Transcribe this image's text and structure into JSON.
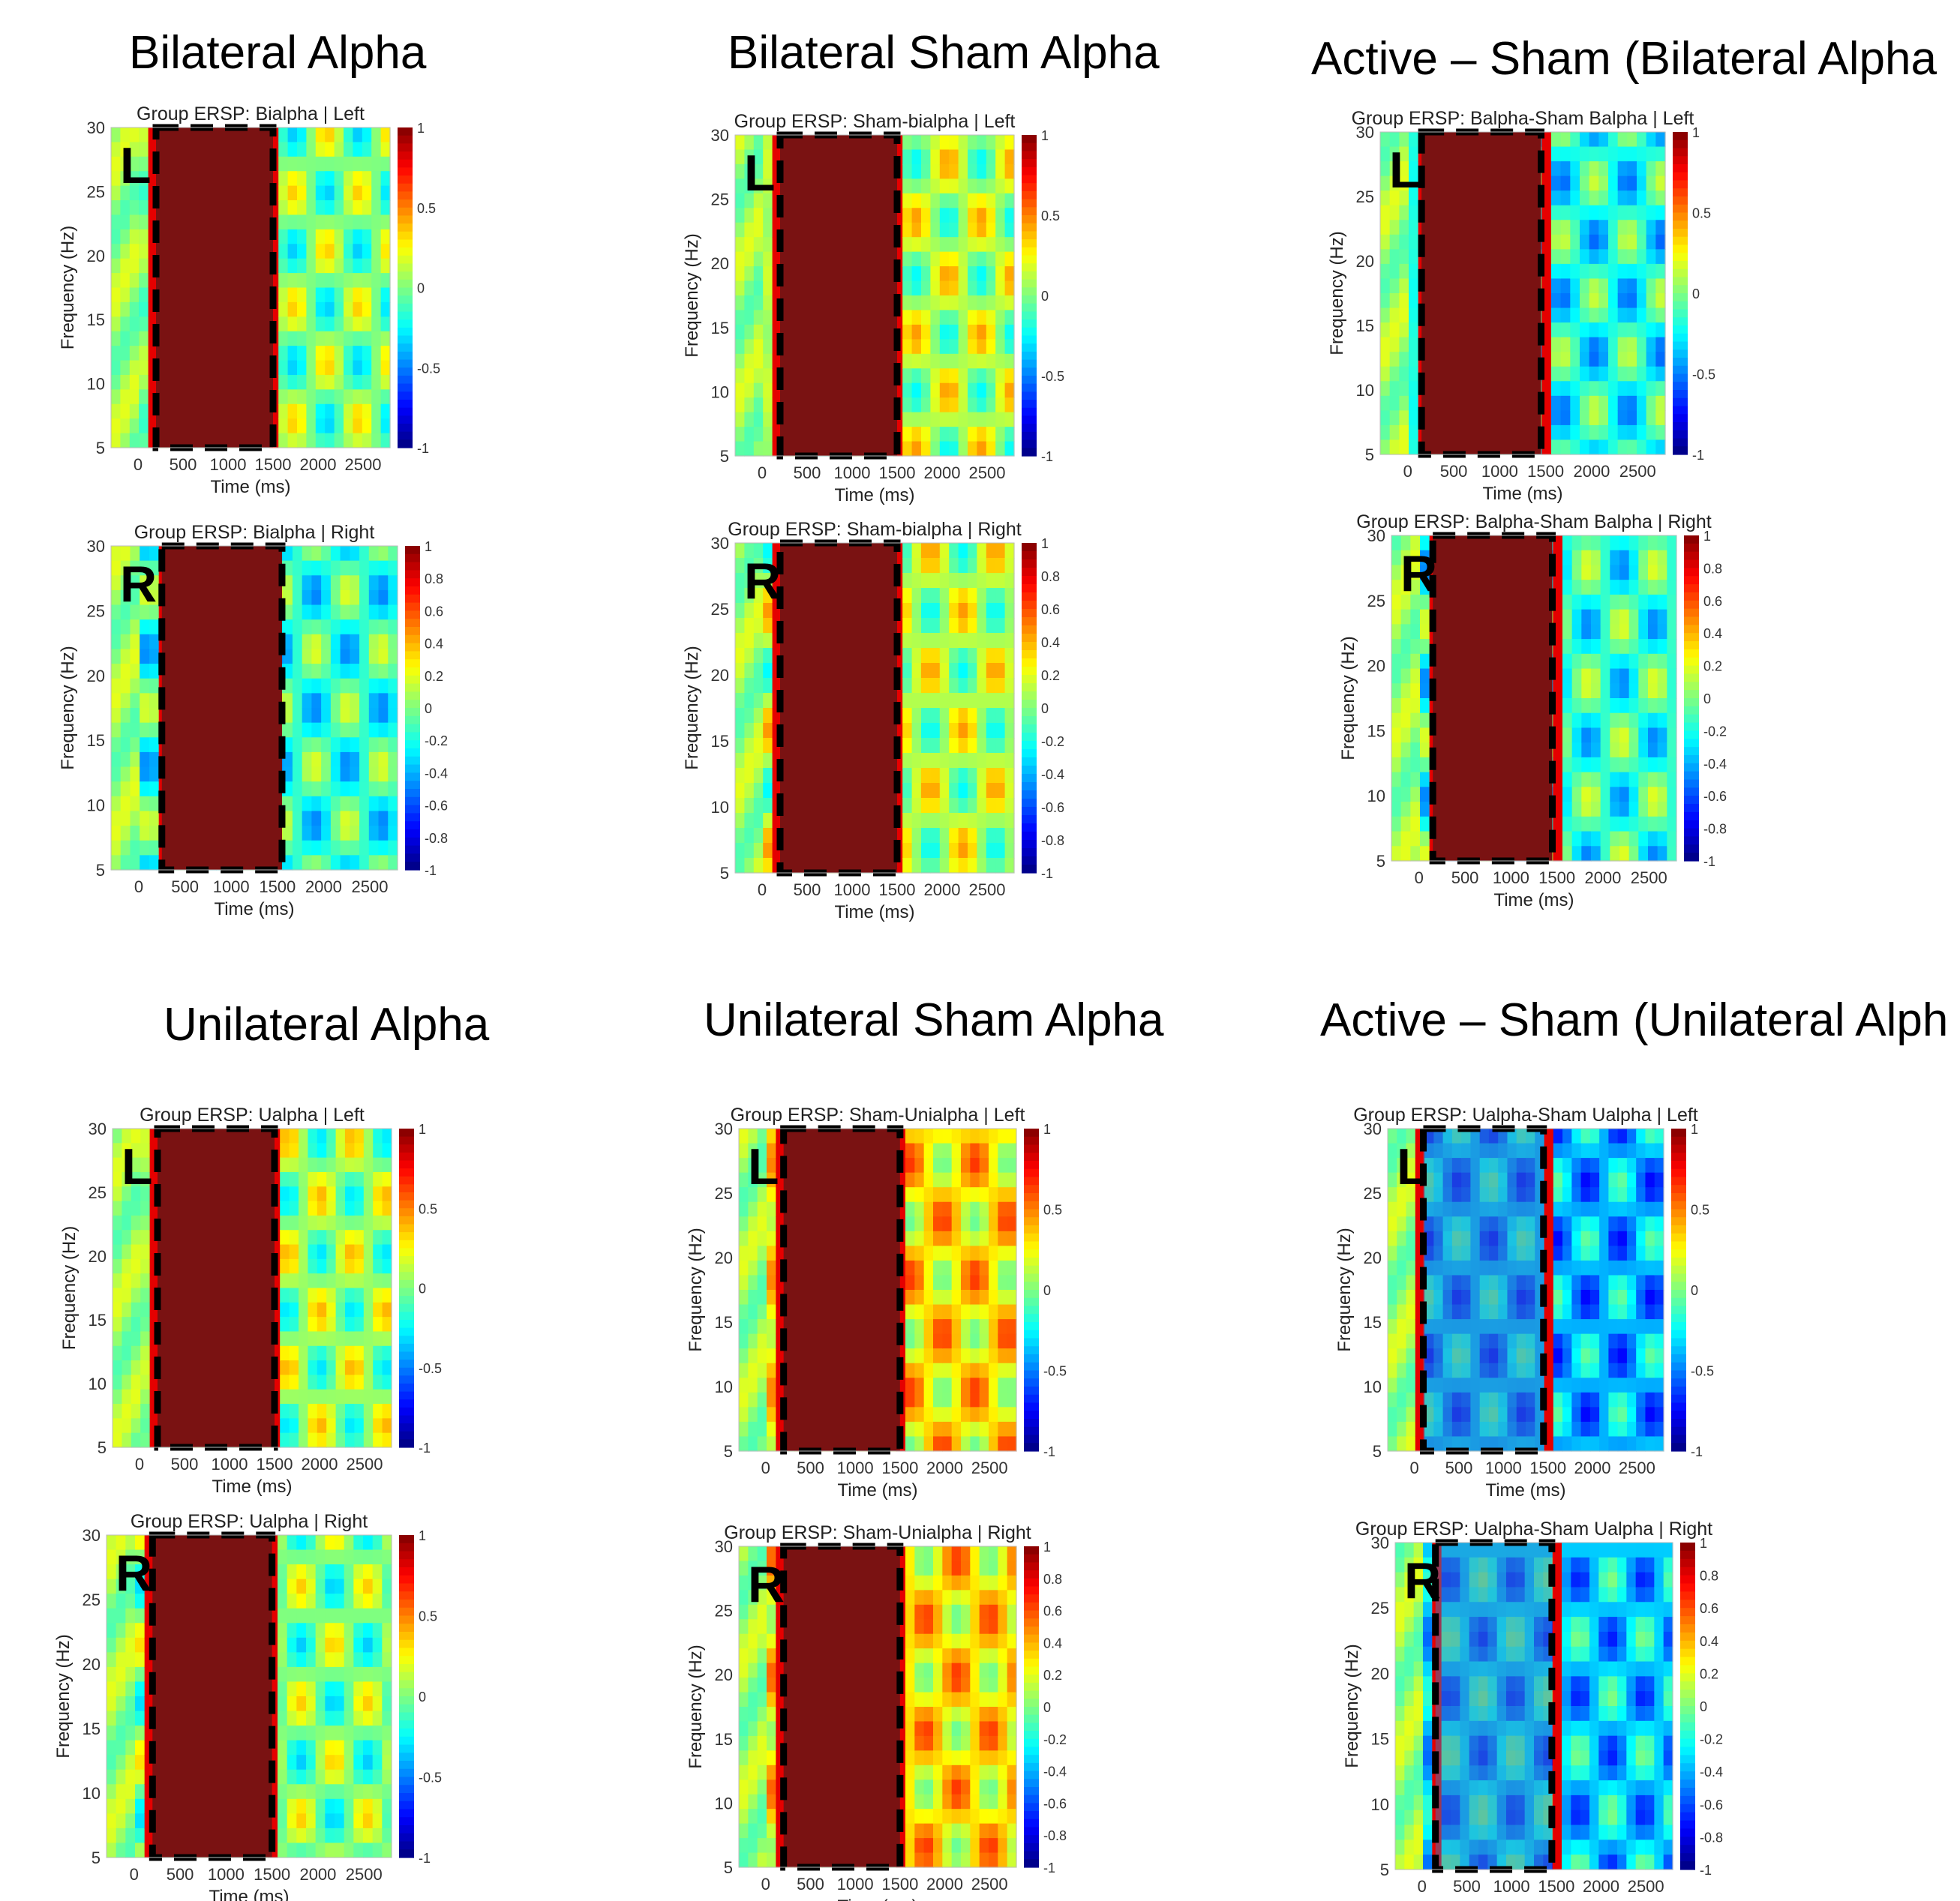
{
  "section_titles": {
    "bilateral_alpha": "Bilateral Alpha",
    "bilateral_sham_alpha": "Bilateral Sham Alpha",
    "active_sham_bilateral": "Active – Sham (Bilateral Alpha",
    "unilateral_alpha": "Unilateral Alpha",
    "unilateral_sham_alpha": "Unilateral Sham Alpha",
    "active_sham_unilateral": "Active – Sham (Unilateral Alph"
  },
  "colors": {
    "saturated": "#7a1212",
    "dashed_box": "#000000",
    "colormap": "jet"
  },
  "chart_data": [
    {
      "type": "heatmap",
      "title": "Group ERSP: Bialpha | Left",
      "side_label": "L",
      "xlabel": "Time (ms)",
      "ylabel": "Frequency (Hz)",
      "xlim": [
        -300,
        2800
      ],
      "ylim": [
        5,
        30
      ],
      "xticks": [
        0,
        500,
        1000,
        1500,
        2000,
        2500
      ],
      "yticks": [
        5,
        10,
        15,
        20,
        25,
        30
      ],
      "clim": [
        -1,
        1
      ],
      "colorbar_ticks": [
        -1,
        -0.5,
        0,
        0.5,
        1
      ],
      "stim_window_ms": [
        200,
        1500
      ],
      "masked": true,
      "mask_overlay": false,
      "post_mean": 0.0
    },
    {
      "type": "heatmap",
      "title": "Group ERSP: Bialpha | Right",
      "side_label": "R",
      "xlabel": "Time (ms)",
      "ylabel": "Frequency (Hz)",
      "xlim": [
        -300,
        2800
      ],
      "ylim": [
        5,
        30
      ],
      "xticks": [
        0,
        500,
        1000,
        1500,
        2000,
        2500
      ],
      "yticks": [
        5,
        10,
        15,
        20,
        25,
        30
      ],
      "clim": [
        -1,
        1
      ],
      "colorbar_ticks": [
        -1,
        -0.8,
        -0.6,
        -0.4,
        -0.2,
        0,
        0.2,
        0.4,
        0.6,
        0.8,
        1
      ],
      "stim_window_ms": [
        250,
        1550
      ],
      "masked": true,
      "mask_overlay": false,
      "post_mean": -0.15
    },
    {
      "type": "heatmap",
      "title": "Group ERSP: Sham-bialpha | Left",
      "side_label": "L",
      "xlabel": "Time (ms)",
      "ylabel": "Frequency (Hz)",
      "xlim": [
        -300,
        2800
      ],
      "ylim": [
        5,
        30
      ],
      "xticks": [
        0,
        500,
        1000,
        1500,
        2000,
        2500
      ],
      "yticks": [
        5,
        10,
        15,
        20,
        25,
        30
      ],
      "clim": [
        -1,
        1
      ],
      "colorbar_ticks": [
        -1,
        -0.5,
        0,
        0.5,
        1
      ],
      "stim_window_ms": [
        200,
        1500
      ],
      "masked": true,
      "mask_overlay": false,
      "post_mean": 0.1
    },
    {
      "type": "heatmap",
      "title": "Group ERSP: Sham-bialpha | Right",
      "side_label": "R",
      "xlabel": "Time (ms)",
      "ylabel": "Frequency (Hz)",
      "xlim": [
        -300,
        2800
      ],
      "ylim": [
        5,
        30
      ],
      "xticks": [
        0,
        500,
        1000,
        1500,
        2000,
        2500
      ],
      "yticks": [
        5,
        10,
        15,
        20,
        25,
        30
      ],
      "clim": [
        -1,
        1
      ],
      "colorbar_ticks": [
        -1,
        -0.8,
        -0.6,
        -0.4,
        -0.2,
        0,
        0.2,
        0.4,
        0.6,
        0.8,
        1
      ],
      "stim_window_ms": [
        200,
        1500
      ],
      "masked": true,
      "mask_overlay": false,
      "post_mean": 0.1
    },
    {
      "type": "heatmap",
      "title": "Group ERSP: Balpha-Sham Balpha | Left",
      "side_label": "L",
      "xlabel": "Time (ms)",
      "ylabel": "Frequency (Hz)",
      "xlim": [
        -300,
        2800
      ],
      "ylim": [
        5,
        30
      ],
      "xticks": [
        0,
        500,
        1000,
        1500,
        2000,
        2500
      ],
      "yticks": [
        5,
        10,
        15,
        20,
        25,
        30
      ],
      "clim": [
        -1,
        1
      ],
      "colorbar_ticks": [
        -1,
        -0.5,
        0,
        0.5,
        1
      ],
      "stim_window_ms": [
        150,
        1450
      ],
      "masked": true,
      "mask_overlay": false,
      "post_mean": -0.2
    },
    {
      "type": "heatmap",
      "title": "Group ERSP: Balpha-Sham Balpha | Right",
      "side_label": "R",
      "xlabel": "Time (ms)",
      "ylabel": "Frequency (Hz)",
      "xlim": [
        -300,
        2800
      ],
      "ylim": [
        5,
        30
      ],
      "xticks": [
        0,
        500,
        1000,
        1500,
        2000,
        2500
      ],
      "yticks": [
        5,
        10,
        15,
        20,
        25,
        30
      ],
      "clim": [
        -1,
        1
      ],
      "colorbar_ticks": [
        -1,
        -0.8,
        -0.6,
        -0.4,
        -0.2,
        0,
        0.2,
        0.4,
        0.6,
        0.8,
        1
      ],
      "stim_window_ms": [
        150,
        1450
      ],
      "masked": true,
      "mask_overlay": false,
      "post_mean": -0.15
    },
    {
      "type": "heatmap",
      "title": "Group ERSP: Ualpha | Left",
      "side_label": "L",
      "xlabel": "Time (ms)",
      "ylabel": "Frequency (Hz)",
      "xlim": [
        -300,
        2800
      ],
      "ylim": [
        5,
        30
      ],
      "xticks": [
        0,
        500,
        1000,
        1500,
        2000,
        2500
      ],
      "yticks": [
        5,
        10,
        15,
        20,
        25,
        30
      ],
      "clim": [
        -1,
        1
      ],
      "colorbar_ticks": [
        -1,
        -0.5,
        0,
        0.5,
        1
      ],
      "stim_window_ms": [
        200,
        1500
      ],
      "masked": true,
      "mask_overlay": false,
      "post_mean": 0.05
    },
    {
      "type": "heatmap",
      "title": "Group ERSP: Ualpha | Right",
      "side_label": "R",
      "xlabel": "Time (ms)",
      "ylabel": "Frequency (Hz)",
      "xlim": [
        -300,
        2800
      ],
      "ylim": [
        5,
        30
      ],
      "xticks": [
        0,
        500,
        1000,
        1500,
        2000,
        2500
      ],
      "yticks": [
        5,
        10,
        15,
        20,
        25,
        30
      ],
      "clim": [
        -1,
        1
      ],
      "colorbar_ticks": [
        -1,
        -0.5,
        0,
        0.5,
        1
      ],
      "stim_window_ms": [
        200,
        1500
      ],
      "masked": true,
      "mask_overlay": false,
      "post_mean": 0.0
    },
    {
      "type": "heatmap",
      "title": "Group ERSP: Sham-Unialpha | Left",
      "side_label": "L",
      "xlabel": "Time (ms)",
      "ylabel": "Frequency (Hz)",
      "xlim": [
        -300,
        2800
      ],
      "ylim": [
        5,
        30
      ],
      "xticks": [
        0,
        500,
        1000,
        1500,
        2000,
        2500
      ],
      "yticks": [
        5,
        10,
        15,
        20,
        25,
        30
      ],
      "clim": [
        -1,
        1
      ],
      "colorbar_ticks": [
        -1,
        -0.5,
        0,
        0.5,
        1
      ],
      "stim_window_ms": [
        200,
        1500
      ],
      "masked": true,
      "mask_overlay": false,
      "post_mean": 0.3
    },
    {
      "type": "heatmap",
      "title": "Group ERSP: Sham-Unialpha | Right",
      "side_label": "R",
      "xlabel": "Time (ms)",
      "ylabel": "Frequency (Hz)",
      "xlim": [
        -300,
        2800
      ],
      "ylim": [
        5,
        30
      ],
      "xticks": [
        0,
        500,
        1000,
        1500,
        2000,
        2500
      ],
      "yticks": [
        5,
        10,
        15,
        20,
        25,
        30
      ],
      "clim": [
        -1,
        1
      ],
      "colorbar_ticks": [
        -1,
        -0.8,
        -0.6,
        -0.4,
        -0.2,
        0,
        0.2,
        0.4,
        0.6,
        0.8,
        1
      ],
      "stim_window_ms": [
        200,
        1500
      ],
      "masked": true,
      "mask_overlay": false,
      "post_mean": 0.3
    },
    {
      "type": "heatmap",
      "title": "Group ERSP: Ualpha-Sham Ualpha | Left",
      "side_label": "L",
      "xlabel": "Time (ms)",
      "ylabel": "Frequency (Hz)",
      "xlim": [
        -300,
        2800
      ],
      "ylim": [
        5,
        30
      ],
      "xticks": [
        0,
        500,
        1000,
        1500,
        2000,
        2500
      ],
      "yticks": [
        5,
        10,
        15,
        20,
        25,
        30
      ],
      "clim": [
        -1,
        1
      ],
      "colorbar_ticks": [
        -1,
        -0.5,
        0,
        0.5,
        1
      ],
      "stim_window_ms": [
        100,
        1450
      ],
      "masked": false,
      "mask_overlay": true,
      "post_mean": -0.4
    },
    {
      "type": "heatmap",
      "title": "Group ERSP: Ualpha-Sham Ualpha | Right",
      "side_label": "R",
      "xlabel": "Time (ms)",
      "ylabel": "Frequency (Hz)",
      "xlim": [
        -300,
        2800
      ],
      "ylim": [
        5,
        30
      ],
      "xticks": [
        0,
        500,
        1000,
        1500,
        2000,
        2500
      ],
      "yticks": [
        5,
        10,
        15,
        20,
        25,
        30
      ],
      "clim": [
        -1,
        1
      ],
      "colorbar_ticks": [
        -1,
        -0.8,
        -0.6,
        -0.4,
        -0.2,
        0,
        0.2,
        0.4,
        0.6,
        0.8,
        1
      ],
      "stim_window_ms": [
        150,
        1450
      ],
      "masked": false,
      "mask_overlay": true,
      "post_mean": -0.35
    }
  ]
}
